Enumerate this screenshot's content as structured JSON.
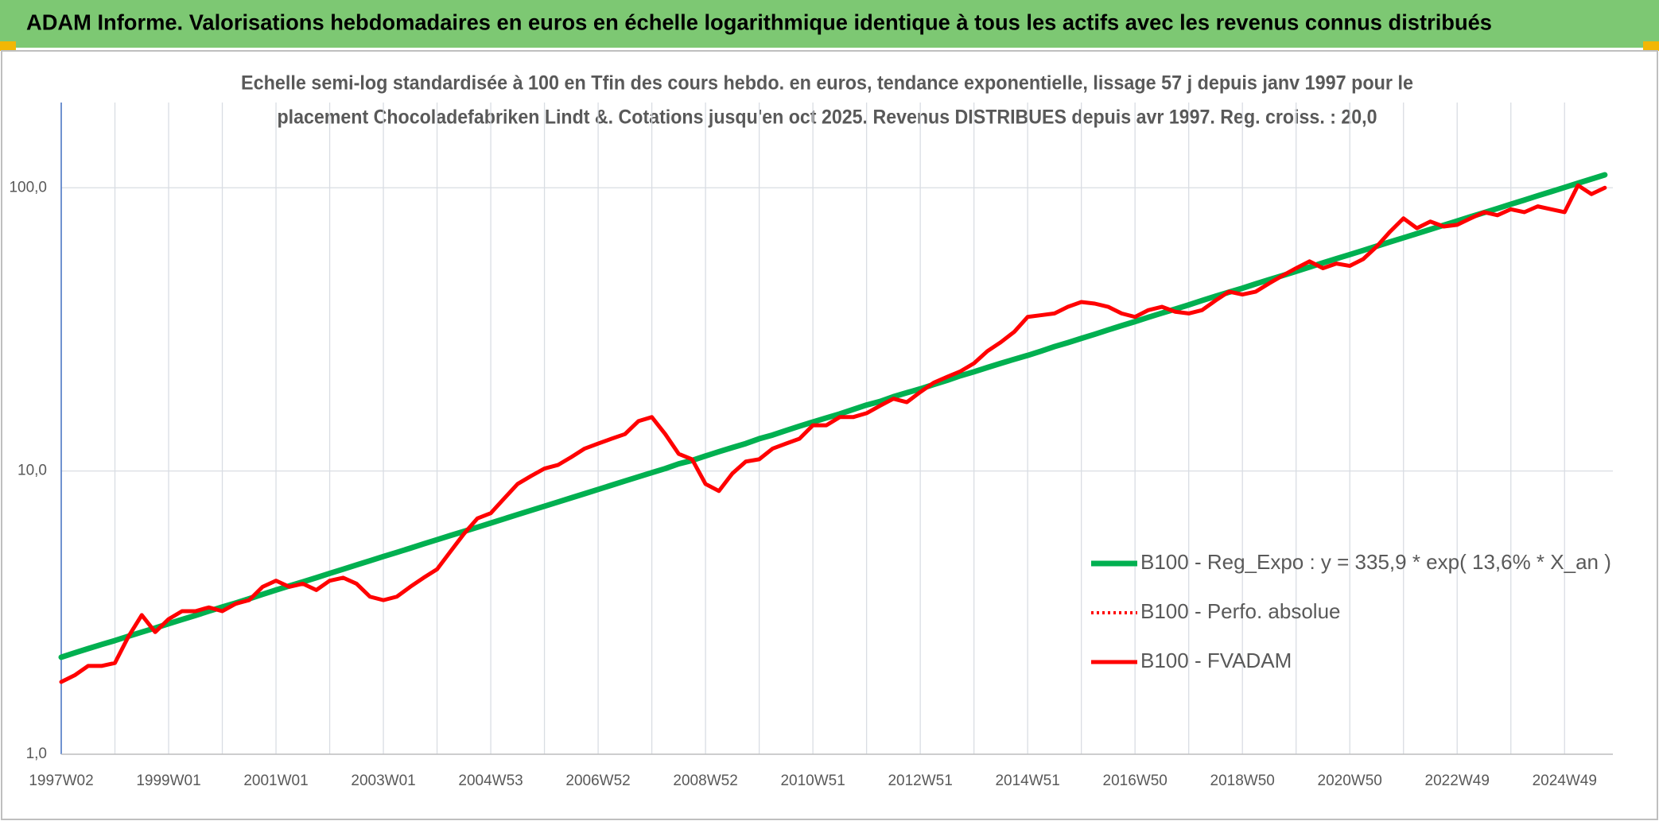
{
  "header": {
    "title": "ADAM Informe. Valorisations hebdomadaires en euros en échelle logarithmique identique à tous les actifs avec les revenus connus distribués"
  },
  "chart_data": {
    "type": "line",
    "title": [
      "Echelle semi-log standardisée à 100 en Tfin des cours hebdo. en euros, tendance exponentielle, lissage 57 j depuis janv 1997 pour le",
      "placement Chocoladefabriken Lindt &. Cotations jusqu'en oct 2025. Revenus DISTRIBUES depuis avr 1997. Reg. croiss. : 20,0"
    ],
    "log_scale": true,
    "grid": true,
    "legend": "lower right",
    "ylim": [
      1,
      200
    ],
    "yticks": [
      {
        "value": 1,
        "label": "1,0"
      },
      {
        "value": 10,
        "label": "10,0"
      },
      {
        "value": 100,
        "label": "100,0"
      }
    ],
    "categories": [
      "1997W02",
      null,
      null,
      null,
      null,
      null,
      null,
      null,
      "1999W01",
      null,
      null,
      null,
      null,
      null,
      null,
      null,
      "2001W01",
      null,
      null,
      null,
      null,
      null,
      null,
      null,
      "2003W01",
      null,
      null,
      null,
      null,
      null,
      null,
      null,
      "2004W53",
      null,
      null,
      null,
      null,
      null,
      null,
      null,
      "2006W52",
      null,
      null,
      null,
      null,
      null,
      null,
      null,
      "2008W52",
      null,
      null,
      null,
      null,
      null,
      null,
      null,
      "2010W51",
      null,
      null,
      null,
      null,
      null,
      null,
      null,
      "2012W51",
      null,
      null,
      null,
      null,
      null,
      null,
      null,
      "2014W51",
      null,
      null,
      null,
      null,
      null,
      null,
      null,
      "2016W50",
      null,
      null,
      null,
      null,
      null,
      null,
      null,
      "2018W50",
      null,
      null,
      null,
      null,
      null,
      null,
      null,
      "2020W50",
      null,
      null,
      null,
      null,
      null,
      null,
      null,
      "2022W49",
      null,
      null,
      null,
      null,
      null,
      null,
      null,
      "2024W49",
      null,
      null,
      null
    ],
    "series": [
      {
        "name": "B100 - Reg_Expo : y = 335,9 * exp( 13,6% *  X_an )",
        "color": "#00b050",
        "style": "solid",
        "values": [
          2.2,
          2.28,
          2.36,
          2.44,
          2.52,
          2.61,
          2.7,
          2.79,
          2.89,
          2.99,
          3.09,
          3.2,
          3.31,
          3.42,
          3.54,
          3.67,
          3.8,
          3.93,
          4.06,
          4.2,
          4.35,
          4.5,
          4.66,
          4.82,
          4.99,
          5.16,
          5.34,
          5.53,
          5.72,
          5.92,
          6.12,
          6.33,
          6.55,
          6.78,
          7.02,
          7.26,
          7.51,
          7.77,
          8.04,
          8.32,
          8.61,
          8.91,
          9.22,
          9.54,
          9.87,
          10.2,
          10.6,
          10.9,
          11.3,
          11.7,
          12.1,
          12.5,
          13.0,
          13.4,
          13.9,
          14.4,
          14.9,
          15.4,
          15.9,
          16.5,
          17.1,
          17.6,
          18.3,
          18.9,
          19.5,
          20.2,
          20.9,
          21.7,
          22.4,
          23.2,
          24.0,
          24.8,
          25.6,
          26.5,
          27.5,
          28.4,
          29.4,
          30.4,
          31.5,
          32.6,
          33.7,
          34.9,
          36.1,
          37.3,
          38.6,
          40.0,
          41.4,
          42.8,
          44.2,
          45.8,
          47.4,
          49.0,
          50.7,
          52.5,
          54.3,
          56.2,
          58.1,
          60.1,
          62.2,
          64.4,
          66.6,
          68.9,
          71.3,
          73.8,
          76.3,
          79.0,
          81.7,
          84.5,
          87.5,
          90.5,
          93.7,
          96.9,
          100.3,
          103.8,
          107.4,
          111.1
        ]
      },
      {
        "name": "B100 - Perfo. absolue",
        "color": "#ff0000",
        "style": "dotted",
        "values": [
          1.8,
          1.9,
          2.05,
          2.05,
          2.1,
          2.6,
          3.1,
          2.7,
          3.0,
          3.2,
          3.2,
          3.3,
          3.2,
          3.4,
          3.5,
          3.9,
          4.1,
          3.9,
          4.0,
          3.8,
          4.1,
          4.2,
          4.0,
          3.6,
          3.5,
          3.6,
          3.9,
          4.2,
          4.5,
          5.2,
          6.0,
          6.8,
          7.1,
          8.0,
          9.0,
          9.6,
          10.2,
          10.5,
          11.2,
          12.0,
          12.5,
          13.0,
          13.5,
          15.0,
          15.5,
          13.5,
          11.5,
          11.0,
          9.0,
          8.5,
          9.8,
          10.8,
          11.0,
          12.0,
          12.5,
          13.0,
          14.5,
          14.5,
          15.5,
          15.5,
          16.0,
          17.0,
          18.0,
          17.5,
          19.0,
          20.5,
          21.5,
          22.5,
          24.0,
          26.5,
          28.5,
          31.0,
          35.0,
          35.5,
          36.0,
          38.0,
          39.5,
          39.0,
          38.0,
          36.0,
          35.0,
          37.0,
          38.0,
          36.5,
          36.0,
          37.0,
          40.0,
          43.0,
          42.0,
          43.0,
          46.0,
          49.0,
          52.0,
          55.0,
          52.0,
          54.0,
          53.0,
          56.0,
          62.0,
          70.0,
          78.0,
          72.0,
          76.0,
          73.0,
          74.0,
          78.0,
          82.0,
          80.0,
          84.0,
          82.0,
          86.0,
          84.0,
          82.0,
          102.0,
          95.0,
          100.0
        ]
      },
      {
        "name": "B100 - FVADAM",
        "color": "#ff0000",
        "style": "solid",
        "values": [
          1.8,
          1.9,
          2.05,
          2.05,
          2.1,
          2.6,
          3.1,
          2.7,
          3.0,
          3.2,
          3.2,
          3.3,
          3.2,
          3.4,
          3.5,
          3.9,
          4.1,
          3.9,
          4.0,
          3.8,
          4.1,
          4.2,
          4.0,
          3.6,
          3.5,
          3.6,
          3.9,
          4.2,
          4.5,
          5.2,
          6.0,
          6.8,
          7.1,
          8.0,
          9.0,
          9.6,
          10.2,
          10.5,
          11.2,
          12.0,
          12.5,
          13.0,
          13.5,
          15.0,
          15.5,
          13.5,
          11.5,
          11.0,
          9.0,
          8.5,
          9.8,
          10.8,
          11.0,
          12.0,
          12.5,
          13.0,
          14.5,
          14.5,
          15.5,
          15.5,
          16.0,
          17.0,
          18.0,
          17.5,
          19.0,
          20.5,
          21.5,
          22.5,
          24.0,
          26.5,
          28.5,
          31.0,
          35.0,
          35.5,
          36.0,
          38.0,
          39.5,
          39.0,
          38.0,
          36.0,
          35.0,
          37.0,
          38.0,
          36.5,
          36.0,
          37.0,
          40.0,
          43.0,
          42.0,
          43.0,
          46.0,
          49.0,
          52.0,
          55.0,
          52.0,
          54.0,
          53.0,
          56.0,
          62.0,
          70.0,
          78.0,
          72.0,
          76.0,
          73.0,
          74.0,
          78.0,
          82.0,
          80.0,
          84.0,
          82.0,
          86.0,
          84.0,
          82.0,
          102.0,
          95.0,
          100.0
        ]
      }
    ]
  }
}
